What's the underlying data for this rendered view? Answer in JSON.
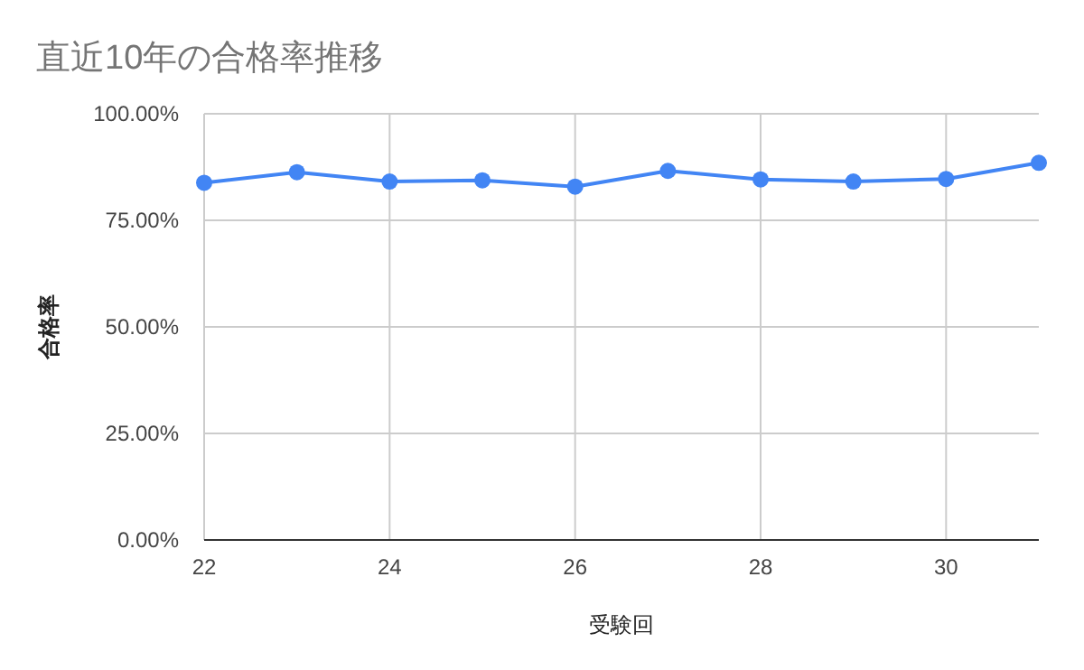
{
  "chart_data": {
    "type": "line",
    "title": "直近10年の合格率推移",
    "xlabel": "受験回",
    "ylabel": "合格率",
    "x": [
      22,
      23,
      24,
      25,
      26,
      27,
      28,
      29,
      30,
      31
    ],
    "series": [
      {
        "color": "#4285f4",
        "values": [
          83.8,
          86.3,
          84.1,
          84.4,
          82.9,
          86.6,
          84.6,
          84.1,
          84.7,
          88.5
        ]
      }
    ],
    "xlim": [
      22,
      31
    ],
    "xticks": [
      22,
      24,
      26,
      28,
      30
    ],
    "ylim": [
      0,
      100
    ],
    "yticks": [
      {
        "value": 0,
        "label": "0.00%"
      },
      {
        "value": 25,
        "label": "25.00%"
      },
      {
        "value": 50,
        "label": "50.00%"
      },
      {
        "value": 75,
        "label": "75.00%"
      },
      {
        "value": 100,
        "label": "100.00%"
      }
    ],
    "grid": true,
    "marker": "circle",
    "line_style": "solid"
  }
}
